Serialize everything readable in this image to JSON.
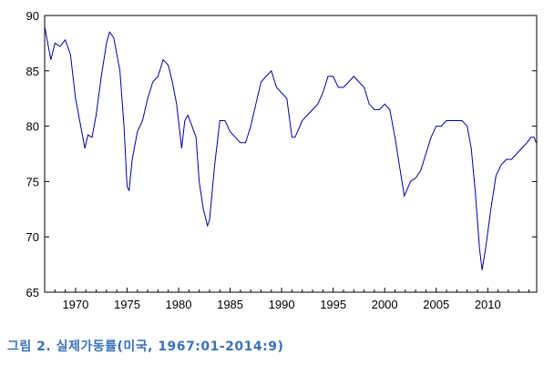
{
  "caption": "그림 2. 실제가동률(미국, 1967:01-2014:9)",
  "chart_data": {
    "type": "line",
    "xlim": [
      1967.0,
      2014.75
    ],
    "ylim": [
      65,
      90
    ],
    "y_ticks": [
      65,
      70,
      75,
      80,
      85,
      90
    ],
    "x_ticks": [
      1970,
      1975,
      1980,
      1985,
      1990,
      1995,
      2000,
      2005,
      2010
    ],
    "grid": false,
    "line_color": "#00009c",
    "series": [
      {
        "x": [
          1967.0,
          1967.3,
          1967.6,
          1968.0,
          1968.5,
          1969.0,
          1969.5,
          1970.0,
          1970.5,
          1970.9,
          1971.2,
          1971.6,
          1972.0,
          1972.5,
          1973.0,
          1973.3,
          1973.7,
          1974.0,
          1974.3,
          1974.7,
          1975.0,
          1975.2,
          1975.5,
          1976.0,
          1976.5,
          1977.0,
          1977.5,
          1978.0,
          1978.5,
          1979.0,
          1979.4,
          1979.8,
          1980.3,
          1980.6,
          1980.9,
          1981.3,
          1981.7,
          1982.0,
          1982.4,
          1982.8,
          1983.0,
          1983.5,
          1984.0,
          1984.5,
          1985.0,
          1985.5,
          1986.0,
          1986.5,
          1987.0,
          1987.5,
          1988.0,
          1988.5,
          1989.0,
          1989.5,
          1990.0,
          1990.5,
          1991.0,
          1991.3,
          1992.0,
          1992.5,
          1993.0,
          1993.5,
          1994.0,
          1994.5,
          1995.0,
          1995.5,
          1996.0,
          1996.5,
          1997.0,
          1997.5,
          1998.0,
          1998.5,
          1999.0,
          1999.5,
          2000.0,
          2000.5,
          2001.0,
          2001.5,
          2001.9,
          2002.5,
          2003.0,
          2003.5,
          2004.0,
          2004.5,
          2005.0,
          2005.5,
          2006.0,
          2006.5,
          2007.0,
          2007.5,
          2008.0,
          2008.4,
          2008.8,
          2009.2,
          2009.45,
          2009.8,
          2010.3,
          2010.8,
          2011.3,
          2011.8,
          2012.3,
          2012.8,
          2013.3,
          2013.8,
          2014.2,
          2014.5,
          2014.7
        ],
        "values": [
          89.0,
          87.5,
          86.0,
          87.5,
          87.2,
          87.8,
          86.5,
          82.5,
          80.0,
          78.0,
          79.2,
          79.0,
          81.0,
          84.5,
          87.5,
          88.5,
          88.0,
          86.5,
          85.0,
          80.0,
          74.5,
          74.2,
          77.0,
          79.5,
          80.5,
          82.5,
          84.0,
          84.5,
          86.0,
          85.5,
          84.0,
          82.0,
          78.0,
          80.5,
          81.0,
          80.0,
          79.0,
          75.0,
          72.5,
          71.0,
          71.5,
          76.5,
          80.5,
          80.5,
          79.5,
          79.0,
          78.5,
          78.5,
          80.0,
          82.0,
          84.0,
          84.5,
          85.0,
          83.5,
          83.0,
          82.5,
          79.0,
          79.0,
          80.5,
          81.0,
          81.5,
          82.0,
          83.0,
          84.5,
          84.5,
          83.5,
          83.5,
          84.0,
          84.5,
          84.0,
          83.5,
          82.0,
          81.5,
          81.5,
          82.0,
          81.5,
          79.0,
          76.0,
          73.7,
          75.0,
          75.3,
          76.0,
          77.5,
          79.0,
          80.0,
          80.0,
          80.5,
          80.5,
          80.5,
          80.5,
          80.0,
          78.0,
          74.0,
          69.0,
          67.0,
          69.0,
          72.5,
          75.5,
          76.5,
          77.0,
          77.0,
          77.5,
          78.0,
          78.5,
          79.0,
          79.0,
          78.5
        ]
      }
    ]
  }
}
